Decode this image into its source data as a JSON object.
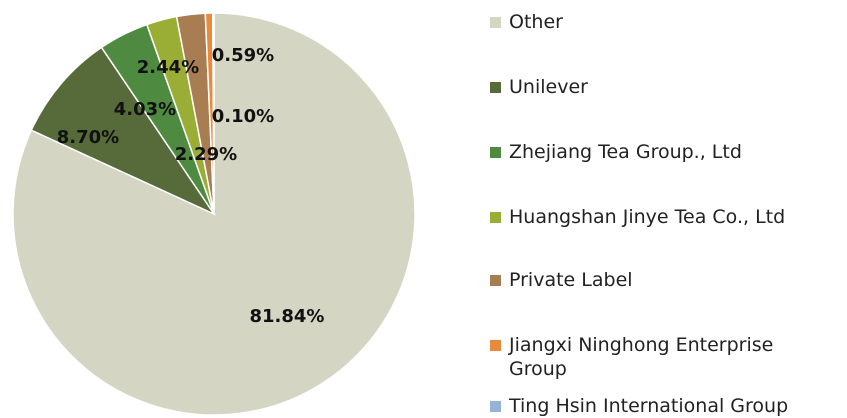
{
  "chart_data": {
    "type": "pie",
    "categories": [
      "Other",
      "Unilever",
      "Zhejiang Tea Group., Ltd",
      "Huangshan Jinye Tea Co., Ltd",
      "Private Label",
      "Jiangxi Ninghong Enterprise Group",
      "Ting Hsin International Group"
    ],
    "values": [
      81.84,
      8.7,
      4.03,
      2.44,
      2.29,
      0.59,
      0.1
    ],
    "value_labels": [
      "81.84%",
      "8.70%",
      "4.03%",
      "2.44%",
      "2.29%",
      "0.59%",
      "0.10%"
    ],
    "colors": [
      "#d4d6c3",
      "#566a3a",
      "#4e8a40",
      "#9aae36",
      "#a87d52",
      "#e88a3c",
      "#95b3d7"
    ],
    "legend": "right"
  }
}
